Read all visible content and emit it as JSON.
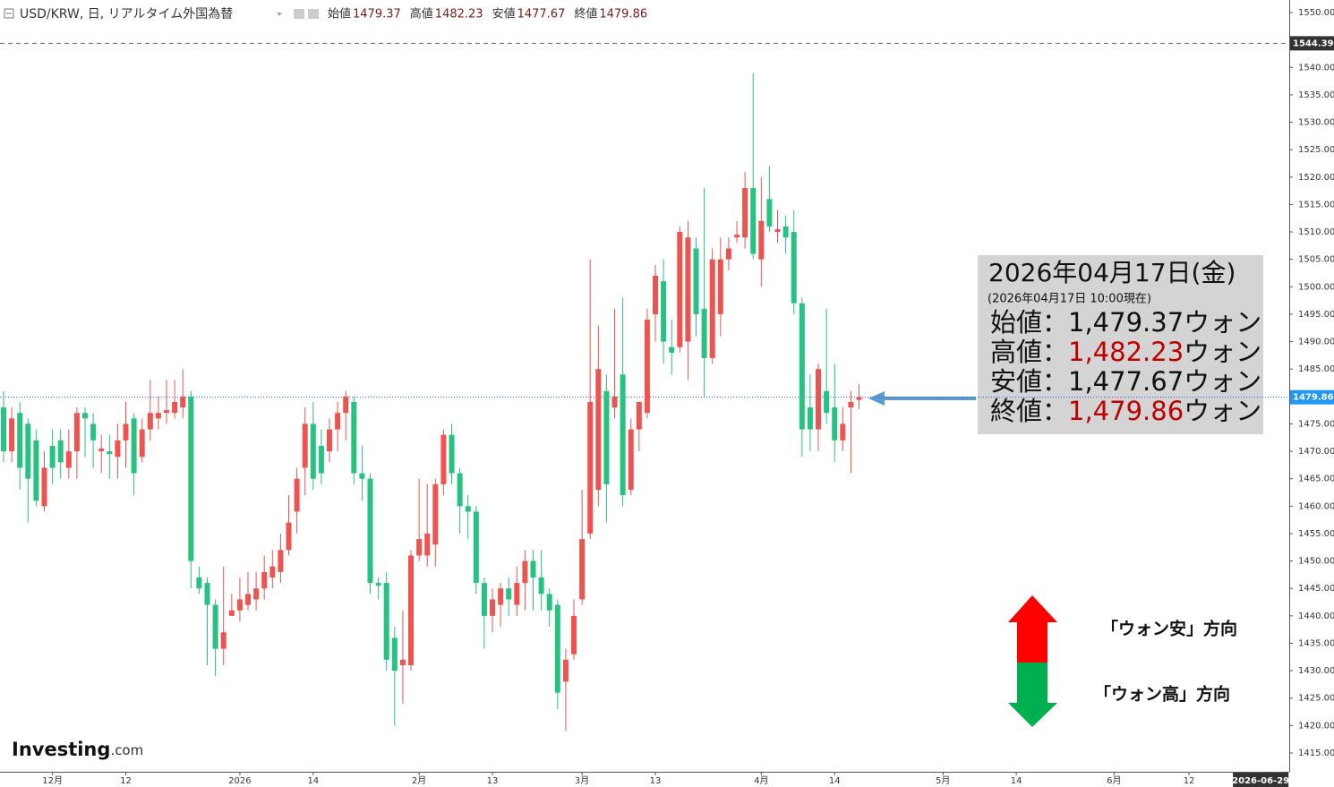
{
  "chart_data": {
    "type": "candlestick",
    "title": "USD/KRW, 日, リアルタイム外国為替",
    "header_labels": [
      "始値",
      "高値",
      "安値",
      "終値"
    ],
    "up_color": "#ef5350",
    "down_color": "#26c281",
    "ohlc": {
      "open": [
        1478,
        1470,
        1477,
        1475,
        1472,
        1460,
        1471,
        1472,
        1467,
        1470,
        1477,
        1475,
        1470,
        1470,
        1469,
        1472,
        1476,
        1469,
        1474,
        1476,
        1477,
        1477,
        1478,
        1480,
        1447,
        1446,
        1442,
        1434,
        1440,
        1441,
        1442,
        1443,
        1445,
        1447,
        1448,
        1452,
        1459,
        1467,
        1475,
        1471,
        1470,
        1474,
        1477,
        1479,
        1466,
        1465,
        1446,
        1446,
        1436,
        1431,
        1431,
        1451,
        1451,
        1453,
        1464,
        1473,
        1466,
        1460,
        1459,
        1446,
        1440,
        1442,
        1445,
        1442,
        1446,
        1450,
        1447,
        1444,
        1442,
        1428,
        1433,
        1443,
        1455,
        1463,
        1481,
        1478,
        1484,
        1463,
        1474,
        1477,
        1495,
        1501,
        1489,
        1489,
        1490,
        1507,
        1496,
        1487,
        1495,
        1505,
        1509,
        1509,
        1518,
        1505,
        1516,
        1510,
        1511,
        1510,
        1497,
        1478,
        1474,
        1481,
        1478,
        1472,
        1478,
        1479.37
      ],
      "high": [
        1481,
        1478,
        1479,
        1476,
        1474,
        1470,
        1474,
        1474,
        1474,
        1478,
        1478,
        1477,
        1473,
        1473,
        1475,
        1479,
        1477,
        1476,
        1483,
        1480,
        1483,
        1483,
        1485,
        1481,
        1449,
        1447,
        1443,
        1449,
        1444,
        1447,
        1448,
        1448,
        1451,
        1452,
        1455,
        1462,
        1467,
        1478,
        1479,
        1474,
        1476,
        1479,
        1481,
        1480,
        1471,
        1466,
        1447,
        1448,
        1438,
        1441,
        1452,
        1465,
        1464,
        1465,
        1474,
        1475,
        1467,
        1462,
        1460,
        1447,
        1445,
        1446,
        1447,
        1449,
        1452,
        1452,
        1452,
        1445,
        1443,
        1434,
        1443,
        1463,
        1505,
        1493,
        1484,
        1496,
        1498,
        1476,
        1479,
        1496,
        1504,
        1505,
        1494,
        1511,
        1512,
        1509,
        1518,
        1507,
        1509,
        1509,
        1512,
        1521,
        1539,
        1520,
        1522,
        1514,
        1513,
        1514,
        1498,
        1484,
        1486,
        1496,
        1486,
        1478,
        1481,
        1482.23
      ],
      "low": [
        1468,
        1468,
        1463,
        1457,
        1460,
        1459,
        1464,
        1465,
        1465,
        1465,
        1469,
        1467,
        1466,
        1465,
        1465,
        1467,
        1462,
        1468,
        1472,
        1474,
        1475,
        1476,
        1476,
        1445,
        1444,
        1431,
        1429,
        1431,
        1440,
        1439,
        1441,
        1441,
        1443,
        1445,
        1446,
        1451,
        1455,
        1462,
        1463,
        1464,
        1468,
        1470,
        1472,
        1464,
        1461,
        1444,
        1443,
        1430,
        1420,
        1424,
        1430,
        1450,
        1449,
        1449,
        1462,
        1464,
        1455,
        1454,
        1444,
        1434,
        1437,
        1438,
        1440,
        1440,
        1441,
        1441,
        1441,
        1438,
        1423,
        1419,
        1432,
        1442,
        1454,
        1460,
        1457,
        1476,
        1460,
        1462,
        1470,
        1476,
        1490,
        1486,
        1484,
        1488,
        1483,
        1491,
        1480,
        1486,
        1491,
        1503,
        1508,
        1507,
        1505,
        1500,
        1510,
        1508,
        1506,
        1495,
        1469,
        1470,
        1470,
        1475,
        1468,
        1470,
        1466,
        1477.67
      ],
      "close": [
        1470,
        1476,
        1467,
        1465,
        1461,
        1467,
        1467,
        1468,
        1470,
        1477,
        1476,
        1472,
        1470.5,
        1469.5,
        1472,
        1475,
        1466,
        1474,
        1477,
        1477,
        1477.5,
        1479,
        1480,
        1450,
        1445,
        1442,
        1434,
        1437,
        1441,
        1443,
        1444,
        1445,
        1448,
        1449,
        1452,
        1457,
        1465,
        1475,
        1465,
        1466,
        1474,
        1477,
        1480,
        1466,
        1465,
        1446,
        1445.5,
        1432,
        1430,
        1432,
        1451,
        1454,
        1455,
        1464,
        1473,
        1466,
        1460,
        1459,
        1446,
        1440,
        1443,
        1445,
        1443,
        1446,
        1450,
        1447,
        1444,
        1441,
        1426,
        1432,
        1440,
        1454,
        1479,
        1485,
        1464,
        1480,
        1462,
        1474,
        1479,
        1494,
        1502,
        1490,
        1488,
        1510,
        1509,
        1495,
        1487,
        1505,
        1505,
        1507,
        1509.5,
        1518,
        1506,
        1512,
        1511,
        1510.5,
        1509,
        1497,
        1474,
        1474,
        1485,
        1477,
        1472,
        1475,
        1479,
        1479.86
      ]
    },
    "xlim": [
      -0.44,
      157.8
    ],
    "xticks": [
      {
        "value": 6,
        "label": "12月"
      },
      {
        "value": 15,
        "label": "12"
      },
      {
        "value": 29,
        "label": "2026"
      },
      {
        "value": 38,
        "label": "14"
      },
      {
        "value": 51,
        "label": "2月"
      },
      {
        "value": 60,
        "label": "13"
      },
      {
        "value": 71,
        "label": "3月"
      },
      {
        "value": 80,
        "label": "13"
      },
      {
        "value": 93,
        "label": "4月"
      },
      {
        "value": 102,
        "label": "14"
      },
      {
        "value": 115.3,
        "label": "5月"
      },
      {
        "value": 124.3,
        "label": "14"
      },
      {
        "value": 136.3,
        "label": "6月"
      },
      {
        "value": 145.5,
        "label": "12"
      },
      {
        "value": 154.3,
        "label": "2026-06-29"
      }
    ],
    "ylim": [
      1411.57,
      1552.29
    ],
    "yticks": [
      {
        "value": 1415,
        "label": "1415.00"
      },
      {
        "value": 1420,
        "label": "1420.00"
      },
      {
        "value": 1425,
        "label": "1425.00"
      },
      {
        "value": 1430,
        "label": "1430.00"
      },
      {
        "value": 1435,
        "label": "1435.00"
      },
      {
        "value": 1440,
        "label": "1440.00"
      },
      {
        "value": 1445,
        "label": "1445.00"
      },
      {
        "value": 1450,
        "label": "1450.00"
      },
      {
        "value": 1455,
        "label": "1455.00"
      },
      {
        "value": 1460,
        "label": "1460.00"
      },
      {
        "value": 1465,
        "label": "1465.00"
      },
      {
        "value": 1470,
        "label": "1470.00"
      },
      {
        "value": 1475,
        "label": "1475.00"
      },
      {
        "value": 1480,
        "label": "1480.00"
      },
      {
        "value": 1485,
        "label": "1485.00"
      },
      {
        "value": 1490,
        "label": "1490.00"
      },
      {
        "value": 1495,
        "label": "1495.00"
      },
      {
        "value": 1500,
        "label": "1500.00"
      },
      {
        "value": 1505,
        "label": "1505.00"
      },
      {
        "value": 1510,
        "label": "1510.00"
      },
      {
        "value": 1515,
        "label": "1515.00"
      },
      {
        "value": 1520,
        "label": "1520.00"
      },
      {
        "value": 1525,
        "label": "1525.00"
      },
      {
        "value": 1530,
        "label": "1530.00"
      },
      {
        "value": 1535,
        "label": "1535.00"
      },
      {
        "value": 1540,
        "label": "1540.00"
      },
      {
        "value": 1545,
        "label": "1545.00"
      },
      {
        "value": 1550,
        "label": "1550.00"
      }
    ],
    "reference_line": {
      "value": 1544.39
    },
    "info_box": {
      "title": "2026年04月17日(金)",
      "subtitle": "(2026年04月17日 10:00現在)",
      "rows": [
        {
          "label": "始値：",
          "value": "1,479.37",
          "unit": "ウォン",
          "color": "#111111"
        },
        {
          "label": "高値：",
          "value": "1,482.23",
          "unit": "ウォン",
          "color": "#c00000"
        },
        {
          "label": "安値：",
          "value": "1,477.67",
          "unit": "ウォン",
          "color": "#111111"
        },
        {
          "label": "終値：",
          "value": "1,479.86",
          "unit": "ウォン",
          "color": "#c00000"
        }
      ]
    },
    "direction_labels": [
      "「ウォン安」方向",
      "「ウォン高」方向"
    ],
    "logo": {
      "name": "Investing",
      "suffix": ".com"
    }
  }
}
